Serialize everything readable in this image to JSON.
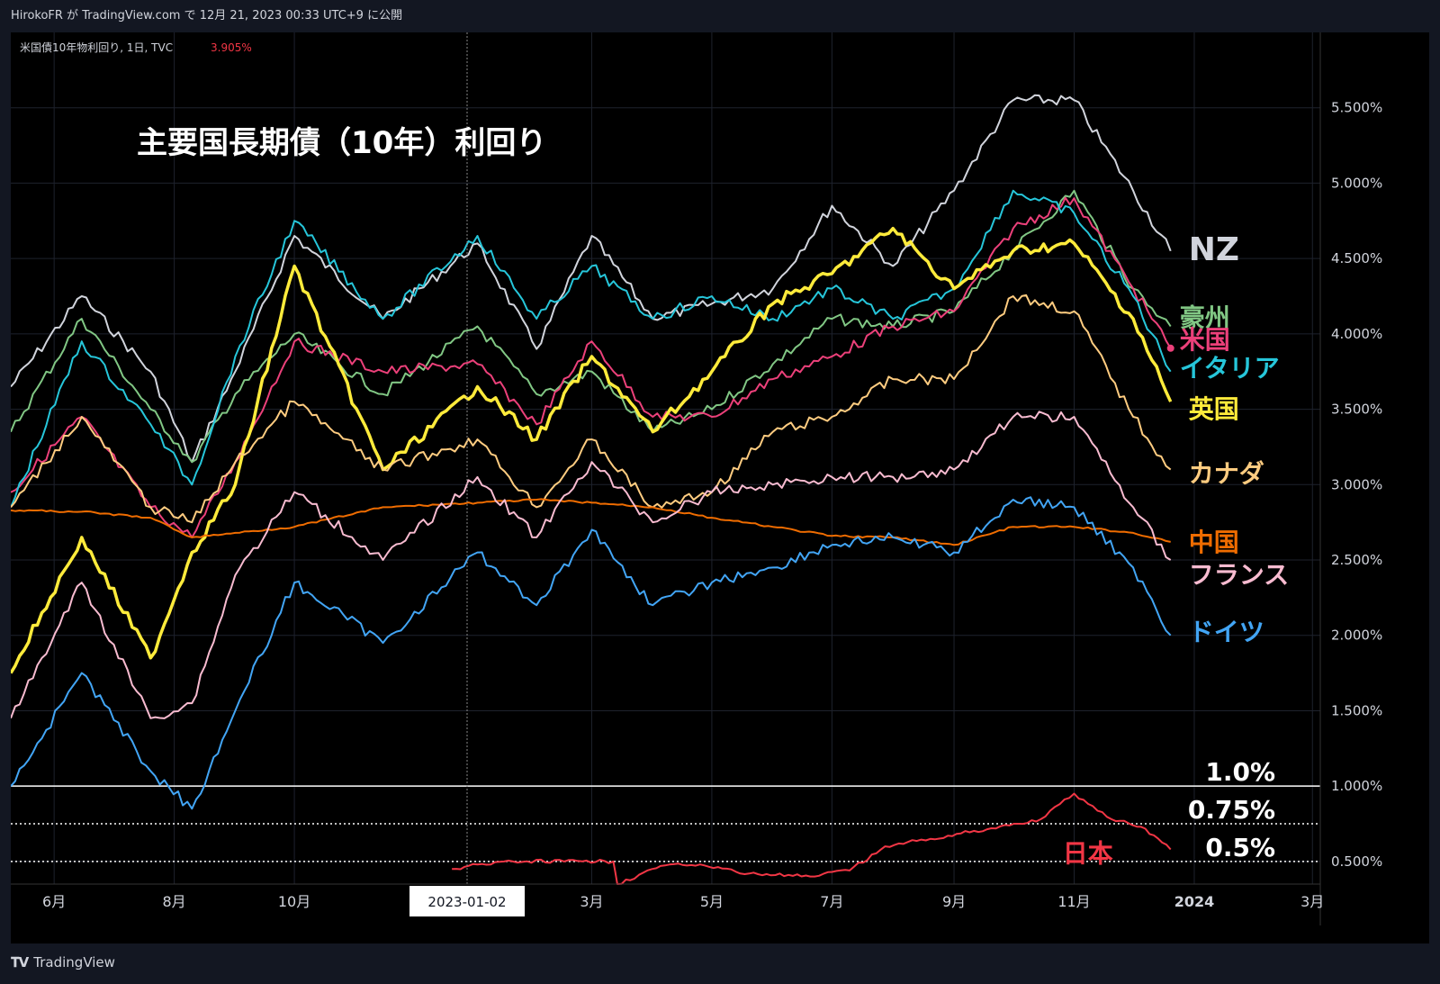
{
  "header": {
    "publisher": "HirokoFR が TradingView.com で 12月 21, 2023 00:33 UTC+9 に公開"
  },
  "legend": {
    "symbol": "米国債10年物利回り, 1日, TVC",
    "value": "3.905%",
    "value_color": "#f23645"
  },
  "footer": {
    "brand": "TradingView"
  },
  "colors": {
    "background": "#000000",
    "panel": "#131722",
    "grid": "#1e222d",
    "axis_text": "#d1d4dc"
  },
  "chart_data": {
    "type": "line",
    "title": "主要国長期債（10年）利回り",
    "x_axis": {
      "ticks": [
        "6月",
        "8月",
        "10月",
        "3月",
        "5月",
        "7月",
        "9月",
        "11月",
        "2024",
        "3月"
      ],
      "crosshair_label": "2023-01-02",
      "range": [
        "2022-05-10",
        "2024-03-05"
      ]
    },
    "y_axis": {
      "unit": "%",
      "ticks": [
        "5.500%",
        "5.000%",
        "4.500%",
        "4.000%",
        "3.500%",
        "3.000%",
        "2.500%",
        "2.000%",
        "1.500%",
        "1.000%",
        "0.500%"
      ],
      "range": [
        0.35,
        6.0
      ]
    },
    "reference_lines": [
      {
        "value": 1.0,
        "label": "1.0%",
        "style": "solid"
      },
      {
        "value": 0.75,
        "label": "0.75%",
        "style": "dotted"
      },
      {
        "value": 0.5,
        "label": "0.5%",
        "style": "dotted"
      }
    ],
    "series": [
      {
        "name": "NZ",
        "color": "#d1d4dc",
        "x": [
          "2022-05-10",
          "2022-06-15",
          "2022-07-20",
          "2022-08-10",
          "2022-09-01",
          "2022-10-01",
          "2022-11-15",
          "2023-01-02",
          "2023-02-01",
          "2023-03-01",
          "2023-04-01",
          "2023-05-01",
          "2023-06-01",
          "2023-07-01",
          "2023-08-01",
          "2023-09-01",
          "2023-10-01",
          "2023-11-01",
          "2023-12-01",
          "2023-12-20"
        ],
        "values": [
          3.65,
          4.25,
          3.75,
          3.15,
          3.75,
          4.65,
          4.1,
          4.6,
          3.9,
          4.65,
          4.1,
          4.2,
          4.3,
          4.85,
          4.45,
          4.95,
          5.55,
          5.55,
          4.95,
          4.55
        ]
      },
      {
        "name": "豪州",
        "color": "#81c784",
        "x": [
          "2022-05-10",
          "2022-06-15",
          "2022-07-20",
          "2022-08-10",
          "2022-09-01",
          "2022-10-01",
          "2022-11-15",
          "2023-01-02",
          "2023-02-01",
          "2023-03-01",
          "2023-04-01",
          "2023-05-01",
          "2023-06-01",
          "2023-07-01",
          "2023-08-01",
          "2023-09-01",
          "2023-10-01",
          "2023-11-01",
          "2023-12-01",
          "2023-12-20"
        ],
        "values": [
          3.35,
          4.1,
          3.5,
          3.15,
          3.6,
          4.0,
          3.6,
          4.05,
          3.6,
          3.75,
          3.35,
          3.5,
          3.8,
          4.1,
          4.05,
          4.15,
          4.55,
          4.95,
          4.3,
          4.05
        ]
      },
      {
        "name": "米国",
        "color": "#ec407a",
        "x": [
          "2022-05-10",
          "2022-06-15",
          "2022-07-20",
          "2022-08-10",
          "2022-09-01",
          "2022-10-01",
          "2022-11-15",
          "2023-01-02",
          "2023-02-01",
          "2023-03-01",
          "2023-04-01",
          "2023-05-01",
          "2023-06-01",
          "2023-07-01",
          "2023-08-01",
          "2023-09-01",
          "2023-10-01",
          "2023-11-01",
          "2023-12-01",
          "2023-12-20"
        ],
        "values": [
          2.95,
          3.45,
          2.85,
          2.65,
          3.15,
          3.95,
          3.75,
          3.8,
          3.4,
          3.95,
          3.45,
          3.45,
          3.7,
          3.85,
          4.05,
          4.15,
          4.7,
          4.9,
          4.3,
          3.905
        ]
      },
      {
        "name": "イタリア",
        "color": "#26c6da",
        "x": [
          "2022-05-10",
          "2022-06-15",
          "2022-07-20",
          "2022-08-10",
          "2022-09-01",
          "2022-10-01",
          "2022-11-15",
          "2023-01-02",
          "2023-02-01",
          "2023-03-01",
          "2023-04-01",
          "2023-05-01",
          "2023-06-01",
          "2023-07-01",
          "2023-08-01",
          "2023-09-01",
          "2023-10-01",
          "2023-11-01",
          "2023-12-01",
          "2023-12-20"
        ],
        "values": [
          2.85,
          3.95,
          3.4,
          3.0,
          3.85,
          4.75,
          4.1,
          4.65,
          4.1,
          4.45,
          4.1,
          4.25,
          4.1,
          4.3,
          4.1,
          4.3,
          4.95,
          4.8,
          4.25,
          3.75
        ]
      },
      {
        "name": "英国",
        "color": "#ffeb3b",
        "x": [
          "2022-05-10",
          "2022-06-15",
          "2022-07-20",
          "2022-08-10",
          "2022-09-01",
          "2022-10-01",
          "2022-11-15",
          "2023-01-02",
          "2023-02-01",
          "2023-03-01",
          "2023-04-01",
          "2023-05-01",
          "2023-06-01",
          "2023-07-01",
          "2023-08-01",
          "2023-09-01",
          "2023-10-01",
          "2023-11-01",
          "2023-12-01",
          "2023-12-20"
        ],
        "values": [
          1.75,
          2.65,
          1.85,
          2.55,
          3.0,
          4.45,
          3.1,
          3.65,
          3.3,
          3.85,
          3.35,
          3.75,
          4.2,
          4.4,
          4.7,
          4.3,
          4.55,
          4.6,
          4.1,
          3.55
        ]
      },
      {
        "name": "カナダ",
        "color": "#ffcc80",
        "x": [
          "2022-05-10",
          "2022-06-15",
          "2022-07-20",
          "2022-08-10",
          "2022-09-01",
          "2022-10-01",
          "2022-11-15",
          "2023-01-02",
          "2023-02-01",
          "2023-03-01",
          "2023-04-01",
          "2023-05-01",
          "2023-06-01",
          "2023-07-01",
          "2023-08-01",
          "2023-09-01",
          "2023-10-01",
          "2023-11-01",
          "2023-12-01",
          "2023-12-20"
        ],
        "values": [
          2.85,
          3.45,
          2.85,
          2.75,
          3.15,
          3.55,
          3.1,
          3.3,
          2.85,
          3.3,
          2.85,
          2.95,
          3.35,
          3.45,
          3.7,
          3.7,
          4.25,
          4.15,
          3.45,
          3.1
        ]
      },
      {
        "name": "中国",
        "color": "#ef6c00",
        "x": [
          "2022-05-10",
          "2022-06-15",
          "2022-07-20",
          "2022-08-10",
          "2022-09-01",
          "2022-10-01",
          "2022-11-15",
          "2023-01-02",
          "2023-02-01",
          "2023-03-01",
          "2023-04-01",
          "2023-05-01",
          "2023-06-01",
          "2023-07-01",
          "2023-08-01",
          "2023-09-01",
          "2023-10-01",
          "2023-11-01",
          "2023-12-01",
          "2023-12-20"
        ],
        "values": [
          2.83,
          2.82,
          2.78,
          2.65,
          2.68,
          2.72,
          2.85,
          2.88,
          2.9,
          2.88,
          2.85,
          2.78,
          2.72,
          2.66,
          2.65,
          2.6,
          2.72,
          2.72,
          2.68,
          2.62
        ]
      },
      {
        "name": "フランス",
        "color": "#f8bbd0",
        "x": [
          "2022-05-10",
          "2022-06-15",
          "2022-07-20",
          "2022-08-10",
          "2022-09-01",
          "2022-10-01",
          "2022-11-15",
          "2023-01-02",
          "2023-02-01",
          "2023-03-01",
          "2023-04-01",
          "2023-05-01",
          "2023-06-01",
          "2023-07-01",
          "2023-08-01",
          "2023-09-01",
          "2023-10-01",
          "2023-11-01",
          "2023-12-01",
          "2023-12-20"
        ],
        "values": [
          1.45,
          2.35,
          1.45,
          1.55,
          2.4,
          2.95,
          2.5,
          3.05,
          2.65,
          3.15,
          2.75,
          2.95,
          3.0,
          3.05,
          3.05,
          3.1,
          3.45,
          3.45,
          2.85,
          2.5
        ]
      },
      {
        "name": "ドイツ",
        "color": "#42a5f5",
        "x": [
          "2022-05-10",
          "2022-06-15",
          "2022-07-20",
          "2022-08-10",
          "2022-09-01",
          "2022-10-01",
          "2022-11-15",
          "2023-01-02",
          "2023-02-01",
          "2023-03-01",
          "2023-04-01",
          "2023-05-01",
          "2023-06-01",
          "2023-07-01",
          "2023-08-01",
          "2023-09-01",
          "2023-10-01",
          "2023-11-01",
          "2023-12-01",
          "2023-12-20"
        ],
        "values": [
          1.0,
          1.75,
          1.1,
          0.85,
          1.5,
          2.35,
          1.95,
          2.55,
          2.2,
          2.7,
          2.2,
          2.35,
          2.45,
          2.6,
          2.65,
          2.55,
          2.9,
          2.85,
          2.45,
          2.0
        ]
      },
      {
        "name": "日本",
        "color": "#f23645",
        "x": [
          "2022-12-20",
          "2023-01-02",
          "2023-01-20",
          "2023-02-15",
          "2023-03-12",
          "2023-03-14",
          "2023-04-05",
          "2023-04-25",
          "2023-05-20",
          "2023-06-20",
          "2023-07-10",
          "2023-07-28",
          "2023-08-20",
          "2023-09-20",
          "2023-10-15",
          "2023-11-01",
          "2023-11-20",
          "2023-12-05",
          "2023-12-20"
        ],
        "values": [
          0.45,
          0.48,
          0.5,
          0.5,
          0.5,
          0.35,
          0.47,
          0.48,
          0.42,
          0.4,
          0.44,
          0.6,
          0.65,
          0.72,
          0.78,
          0.95,
          0.78,
          0.73,
          0.58
        ]
      }
    ]
  }
}
